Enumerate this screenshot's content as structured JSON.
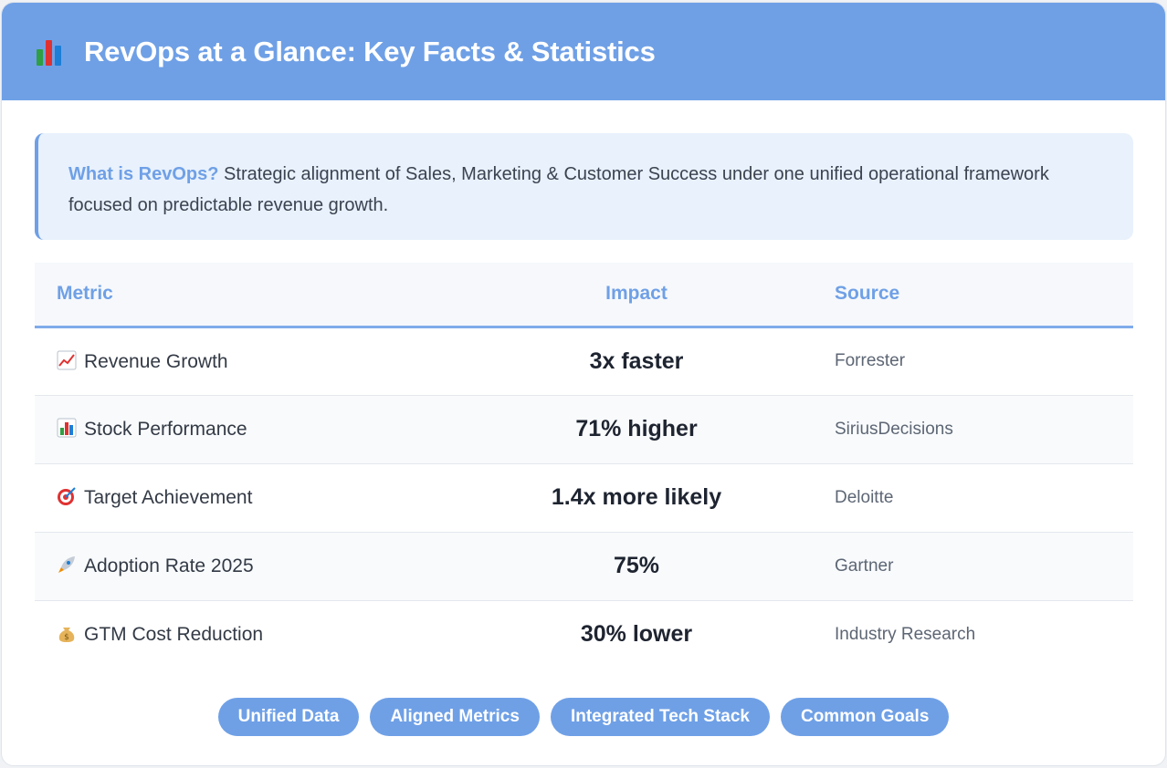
{
  "header": {
    "title": "RevOps at a Glance: Key Facts & Statistics",
    "icon": "bar-chart-icon"
  },
  "intro": {
    "lead": "What is RevOps?",
    "text": " Strategic alignment of Sales, Marketing & Customer Success under one unified operational framework focused on predictable revenue growth."
  },
  "table": {
    "headers": {
      "metric": "Metric",
      "impact": "Impact",
      "source": "Source"
    },
    "rows": [
      {
        "icon": "chart-up-icon",
        "metric": "Revenue Growth",
        "impact": "3x faster",
        "source": "Forrester"
      },
      {
        "icon": "bar-chart-icon",
        "metric": "Stock Performance",
        "impact": "71% higher",
        "source": "SiriusDecisions"
      },
      {
        "icon": "target-icon",
        "metric": "Target Achievement",
        "impact": "1.4x more likely",
        "source": "Deloitte"
      },
      {
        "icon": "rocket-icon",
        "metric": "Adoption Rate 2025",
        "impact": "75%",
        "source": "Gartner"
      },
      {
        "icon": "money-bag-icon",
        "metric": "GTM Cost Reduction",
        "impact": "30% lower",
        "source": "Industry Research"
      }
    ]
  },
  "tags": [
    "Unified Data",
    "Aligned Metrics",
    "Integrated Tech Stack",
    "Common Goals"
  ],
  "colors": {
    "accent": "#6fa0e6",
    "intro_bg": "#e8f1fc"
  }
}
